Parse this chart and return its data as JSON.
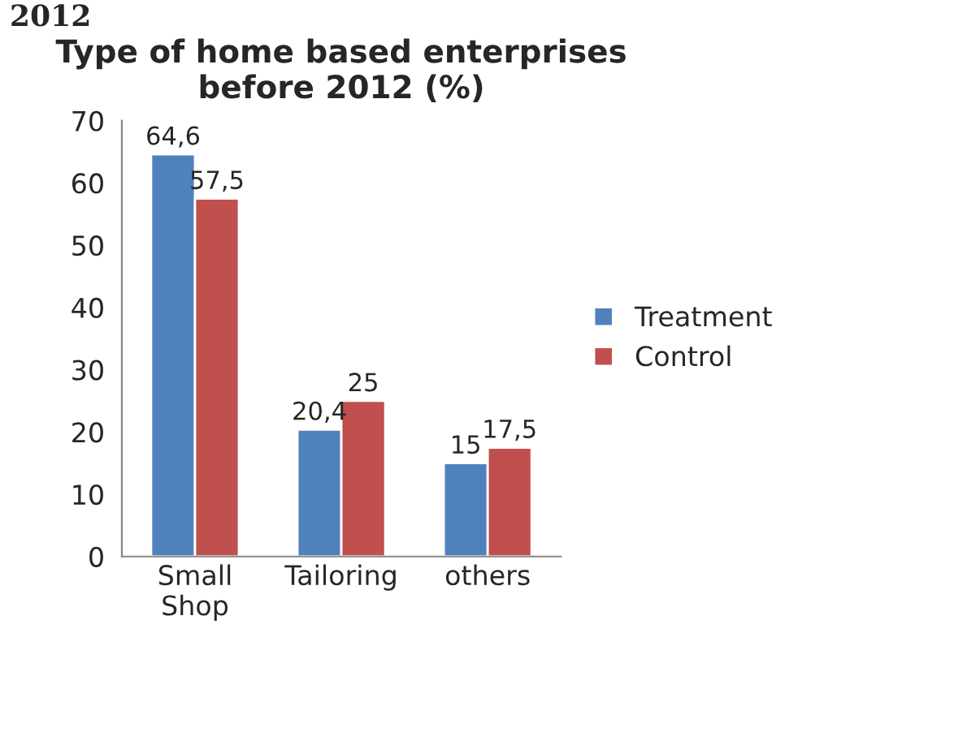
{
  "chart_data": {
    "type": "bar",
    "title": "Type of home based enterprises\nbefore 2012 (%)",
    "categories": [
      "Small\nShop",
      "Tailoring",
      "others"
    ],
    "series": [
      {
        "name": "Treatment",
        "color": "#4f81bd",
        "values": [
          64.6,
          20.4,
          15
        ],
        "value_labels": [
          "64,6",
          "20,4",
          "15"
        ]
      },
      {
        "name": "Control",
        "color": "#c0504d",
        "values": [
          57.5,
          25,
          17.5
        ],
        "value_labels": [
          "57,5",
          "25",
          "17,5"
        ]
      }
    ],
    "ylim": [
      0,
      70
    ],
    "yticks": [
      0,
      10,
      20,
      30,
      40,
      50,
      60,
      70
    ],
    "grid": false,
    "legend": "right",
    "annotations": [
      "2012"
    ]
  }
}
